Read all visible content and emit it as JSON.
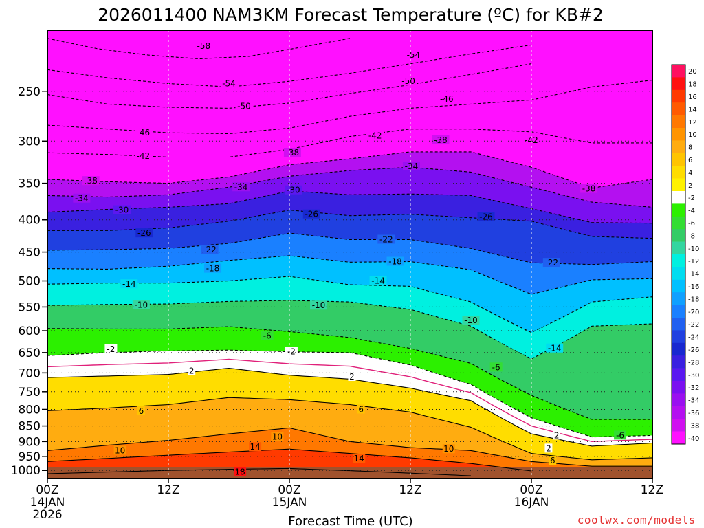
{
  "chart_data": {
    "type": "heatmap",
    "title": "2026011400 NAM3KM Forecast Temperature (ºC) for KB#2",
    "xlabel": "Forecast Time (UTC)",
    "x_ticks": [
      {
        "hour": 0,
        "lines": [
          "00Z",
          "14JAN",
          "2026"
        ]
      },
      {
        "hour": 12,
        "lines": [
          "12Z"
        ]
      },
      {
        "hour": 24,
        "lines": [
          "00Z",
          "15JAN"
        ]
      },
      {
        "hour": 36,
        "lines": [
          "12Z"
        ]
      },
      {
        "hour": 48,
        "lines": [
          "00Z",
          "16JAN"
        ]
      },
      {
        "hour": 60,
        "lines": [
          "12Z"
        ]
      }
    ],
    "xlim": [
      0,
      60
    ],
    "y_ticks": [
      250,
      300,
      350,
      400,
      450,
      500,
      550,
      600,
      650,
      700,
      750,
      800,
      850,
      900,
      950,
      1000
    ],
    "ylim": [
      200,
      1030
    ],
    "y_scale": "log-pressure",
    "grid": true,
    "colorbar": {
      "labels": [
        "20",
        "18",
        "16",
        "14",
        "12",
        "10",
        "8",
        "6",
        "4",
        "2",
        "-2",
        "-4",
        "-6",
        "-8",
        "-10",
        "-12",
        "-14",
        "-16",
        "-18",
        "-20",
        "-22",
        "-24",
        "-26",
        "-28",
        "-30",
        "-32",
        "-34",
        "-36",
        "-38",
        "-40"
      ],
      "colors": [
        "#ff1060",
        "#ff1010",
        "#ff3a00",
        "#ff5a00",
        "#ff7800",
        "#ff9400",
        "#ffac10",
        "#ffc400",
        "#ffdd00",
        "#fff200",
        "#ffffff",
        "#2cf000",
        "#33dd33",
        "#33cc66",
        "#33d6a0",
        "#00f0e0",
        "#00ddf0",
        "#00c0ff",
        "#10a0ff",
        "#1a80ff",
        "#2060f0",
        "#2040e0",
        "#1828d0",
        "#3a20e0",
        "#5a18f0",
        "#7a10f0",
        "#9a10f0",
        "#b410f0",
        "#d010f0",
        "#ff10ff"
      ]
    },
    "series": [
      {
        "name": "-58",
        "values": [
          [
            0,
            206
          ],
          [
            5,
            214
          ],
          [
            10,
            219
          ],
          [
            15,
            222
          ],
          [
            20,
            220
          ],
          [
            25,
            213
          ],
          [
            30,
            206
          ]
        ]
      },
      {
        "name": "-54",
        "values": [
          [
            0,
            231
          ],
          [
            6,
            238
          ],
          [
            12,
            243
          ],
          [
            18,
            246
          ],
          [
            24,
            241
          ],
          [
            30,
            234
          ],
          [
            36,
            226
          ],
          [
            42,
            218
          ],
          [
            48,
            211
          ]
        ]
      },
      {
        "name": "-50",
        "values": [
          [
            0,
            253
          ],
          [
            6,
            262
          ],
          [
            12,
            265
          ],
          [
            18,
            266
          ],
          [
            24,
            261
          ],
          [
            30,
            252
          ],
          [
            36,
            244
          ],
          [
            42,
            235
          ],
          [
            48,
            226
          ]
        ]
      },
      {
        "name": "-46",
        "values": [
          [
            0,
            283
          ],
          [
            6,
            287
          ],
          [
            12,
            291
          ],
          [
            18,
            292
          ],
          [
            24,
            286
          ],
          [
            30,
            274
          ],
          [
            36,
            266
          ],
          [
            42,
            262
          ],
          [
            48,
            258
          ],
          [
            54,
            246
          ],
          [
            60,
            240
          ]
        ]
      },
      {
        "name": "-42",
        "values": [
          [
            0,
            313
          ],
          [
            6,
            315
          ],
          [
            12,
            318
          ],
          [
            18,
            318
          ],
          [
            24,
            309
          ],
          [
            30,
            295
          ],
          [
            36,
            287
          ],
          [
            42,
            287
          ],
          [
            48,
            290
          ],
          [
            54,
            302
          ],
          [
            60,
            302
          ]
        ]
      },
      {
        "name": "-38",
        "values": [
          [
            0,
            345
          ],
          [
            6,
            348
          ],
          [
            12,
            350
          ],
          [
            18,
            342
          ],
          [
            24,
            327
          ],
          [
            30,
            320
          ],
          [
            36,
            312
          ],
          [
            42,
            312
          ],
          [
            48,
            330
          ],
          [
            54,
            356
          ],
          [
            60,
            345
          ]
        ]
      },
      {
        "name": "-34",
        "values": [
          [
            0,
            366
          ],
          [
            6,
            368
          ],
          [
            12,
            365
          ],
          [
            18,
            355
          ],
          [
            24,
            341
          ],
          [
            30,
            334
          ],
          [
            36,
            330
          ],
          [
            42,
            336
          ],
          [
            48,
            355
          ],
          [
            54,
            375
          ],
          [
            60,
            382
          ]
        ]
      },
      {
        "name": "-30",
        "values": [
          [
            0,
            389
          ],
          [
            6,
            385
          ],
          [
            12,
            382
          ],
          [
            18,
            377
          ],
          [
            24,
            360
          ],
          [
            30,
            365
          ],
          [
            36,
            364
          ],
          [
            42,
            366
          ],
          [
            48,
            384
          ],
          [
            54,
            404
          ],
          [
            60,
            405
          ]
        ]
      },
      {
        "name": "-26",
        "values": [
          [
            0,
            416
          ],
          [
            6,
            416
          ],
          [
            12,
            412
          ],
          [
            18,
            402
          ],
          [
            24,
            386
          ],
          [
            30,
            394
          ],
          [
            36,
            392
          ],
          [
            42,
            397
          ],
          [
            48,
            402
          ],
          [
            54,
            425
          ],
          [
            60,
            428
          ]
        ]
      },
      {
        "name": "-22",
        "values": [
          [
            0,
            447
          ],
          [
            6,
            446
          ],
          [
            12,
            444
          ],
          [
            18,
            436
          ],
          [
            24,
            420
          ],
          [
            30,
            430
          ],
          [
            36,
            430
          ],
          [
            42,
            444
          ],
          [
            48,
            468
          ],
          [
            54,
            471
          ],
          [
            60,
            466
          ]
        ]
      },
      {
        "name": "-18",
        "values": [
          [
            0,
            478
          ],
          [
            6,
            479
          ],
          [
            12,
            474
          ],
          [
            18,
            464
          ],
          [
            24,
            456
          ],
          [
            30,
            467
          ],
          [
            36,
            466
          ],
          [
            42,
            480
          ],
          [
            48,
            525
          ],
          [
            54,
            498
          ],
          [
            60,
            496
          ]
        ]
      },
      {
        "name": "-14",
        "values": [
          [
            0,
            506
          ],
          [
            6,
            504
          ],
          [
            12,
            504
          ],
          [
            18,
            500
          ],
          [
            24,
            492
          ],
          [
            30,
            507
          ],
          [
            36,
            510
          ],
          [
            42,
            540
          ],
          [
            48,
            604
          ],
          [
            54,
            540
          ],
          [
            60,
            530
          ]
        ]
      },
      {
        "name": "-10",
        "values": [
          [
            0,
            547
          ],
          [
            6,
            545
          ],
          [
            12,
            544
          ],
          [
            18,
            539
          ],
          [
            24,
            537
          ],
          [
            30,
            540
          ],
          [
            36,
            555
          ],
          [
            42,
            590
          ],
          [
            48,
            665
          ],
          [
            54,
            590
          ],
          [
            60,
            585
          ]
        ]
      },
      {
        "name": "-6",
        "values": [
          [
            0,
            595
          ],
          [
            6,
            596
          ],
          [
            12,
            596
          ],
          [
            18,
            591
          ],
          [
            24,
            602
          ],
          [
            30,
            615
          ],
          [
            36,
            640
          ],
          [
            42,
            676
          ],
          [
            48,
            760
          ],
          [
            54,
            830
          ],
          [
            60,
            830
          ]
        ]
      },
      {
        "name": "-2",
        "values": [
          [
            0,
            657
          ],
          [
            6,
            650
          ],
          [
            12,
            646
          ],
          [
            18,
            644
          ],
          [
            24,
            648
          ],
          [
            30,
            650
          ],
          [
            36,
            680
          ],
          [
            42,
            730
          ],
          [
            48,
            825
          ],
          [
            54,
            885
          ],
          [
            60,
            880
          ]
        ]
      },
      {
        "name": "2",
        "values": [
          [
            0,
            712
          ],
          [
            6,
            708
          ],
          [
            12,
            704
          ],
          [
            18,
            688
          ],
          [
            24,
            706
          ],
          [
            30,
            716
          ],
          [
            36,
            740
          ],
          [
            42,
            775
          ],
          [
            48,
            875
          ],
          [
            54,
            915
          ],
          [
            60,
            905
          ]
        ]
      },
      {
        "name": "6",
        "values": [
          [
            0,
            804
          ],
          [
            6,
            796
          ],
          [
            12,
            786
          ],
          [
            18,
            766
          ],
          [
            24,
            772
          ],
          [
            30,
            786
          ],
          [
            36,
            808
          ],
          [
            42,
            854
          ],
          [
            48,
            940
          ],
          [
            54,
            962
          ],
          [
            60,
            955
          ]
        ]
      },
      {
        "name": "10",
        "values": [
          [
            0,
            930
          ],
          [
            6,
            912
          ],
          [
            12,
            896
          ],
          [
            18,
            875
          ],
          [
            24,
            856
          ],
          [
            30,
            900
          ],
          [
            36,
            920
          ],
          [
            42,
            930
          ],
          [
            48,
            968
          ],
          [
            54,
            985
          ],
          [
            60,
            985
          ]
        ]
      },
      {
        "name": "14",
        "values": [
          [
            0,
            968
          ],
          [
            6,
            957
          ],
          [
            12,
            946
          ],
          [
            18,
            935
          ],
          [
            24,
            925
          ],
          [
            30,
            940
          ],
          [
            36,
            955
          ],
          [
            42,
            975
          ],
          [
            48,
            1002
          ]
        ]
      },
      {
        "name": "18",
        "values": [
          [
            0,
            1012
          ],
          [
            6,
            1006
          ],
          [
            12,
            1000
          ],
          [
            18,
            996
          ],
          [
            24,
            993
          ],
          [
            30,
            1001
          ],
          [
            36,
            1010
          ],
          [
            42,
            1020
          ]
        ]
      }
    ],
    "contour_labels": [
      {
        "v": "-58",
        "h": 15.5,
        "p": 212
      },
      {
        "v": "-54",
        "h": 18,
        "p": 243
      },
      {
        "v": "-54",
        "h": 36.3,
        "p": 219
      },
      {
        "v": "-50",
        "h": 19.5,
        "p": 264
      },
      {
        "v": "-50",
        "h": 35.8,
        "p": 241
      },
      {
        "v": "-46",
        "h": 9.5,
        "p": 291
      },
      {
        "v": "-46",
        "h": 39.6,
        "p": 257
      },
      {
        "v": "-42",
        "h": 9.5,
        "p": 317
      },
      {
        "v": "-42",
        "h": 32.5,
        "p": 294
      },
      {
        "v": "-42",
        "h": 48,
        "p": 299
      },
      {
        "v": "-38",
        "h": 4.3,
        "p": 347
      },
      {
        "v": "-38",
        "h": 24.3,
        "p": 313
      },
      {
        "v": "-38",
        "h": 39,
        "p": 299
      },
      {
        "v": "-38",
        "h": 53.7,
        "p": 357
      },
      {
        "v": "-34",
        "h": 3.4,
        "p": 370
      },
      {
        "v": "-34",
        "h": 19.2,
        "p": 355
      },
      {
        "v": "-34",
        "h": 36.1,
        "p": 329
      },
      {
        "v": "-30",
        "h": 7.4,
        "p": 386
      },
      {
        "v": "-30",
        "h": 24.4,
        "p": 359
      },
      {
        "v": "-26",
        "h": 9.6,
        "p": 420
      },
      {
        "v": "-26",
        "h": 26.2,
        "p": 392
      },
      {
        "v": "-26",
        "h": 43.5,
        "p": 396
      },
      {
        "v": "-22",
        "h": 16.1,
        "p": 446
      },
      {
        "v": "-22",
        "h": 33.6,
        "p": 430
      },
      {
        "v": "-22",
        "h": 50,
        "p": 468
      },
      {
        "v": "-18",
        "h": 16.4,
        "p": 478
      },
      {
        "v": "-18",
        "h": 34.5,
        "p": 466
      },
      {
        "v": "-14",
        "h": 8.1,
        "p": 506
      },
      {
        "v": "-14",
        "h": 32.8,
        "p": 500
      },
      {
        "v": "-14",
        "h": 50.3,
        "p": 640
      },
      {
        "v": "-10",
        "h": 9.3,
        "p": 546
      },
      {
        "v": "-10",
        "h": 26.9,
        "p": 547
      },
      {
        "v": "-10",
        "h": 42,
        "p": 578
      },
      {
        "v": "-6",
        "h": 21.8,
        "p": 611
      },
      {
        "v": "-6",
        "h": 44.5,
        "p": 686
      },
      {
        "v": "-6",
        "h": 56.8,
        "p": 880
      },
      {
        "v": "-2",
        "h": 6.3,
        "p": 642
      },
      {
        "v": "-2",
        "h": 24.2,
        "p": 648
      },
      {
        "v": "2",
        "h": 14.3,
        "p": 695
      },
      {
        "v": "2",
        "h": 30.2,
        "p": 710
      },
      {
        "v": "2",
        "h": 50.5,
        "p": 880
      },
      {
        "v": "2",
        "h": 49.7,
        "p": 923
      },
      {
        "v": "6",
        "h": 9.3,
        "p": 805
      },
      {
        "v": "6",
        "h": 31.1,
        "p": 800
      },
      {
        "v": "6",
        "h": 50.1,
        "p": 965
      },
      {
        "v": "10",
        "h": 7.2,
        "p": 930
      },
      {
        "v": "10",
        "h": 22.8,
        "p": 885
      },
      {
        "v": "10",
        "h": 39.8,
        "p": 925
      },
      {
        "v": "14",
        "h": 20.6,
        "p": 918
      },
      {
        "v": "14",
        "h": 30.9,
        "p": 958
      },
      {
        "v": "18",
        "h": 19.1,
        "p": 1006
      }
    ]
  },
  "credit": "coolwx.com/models"
}
